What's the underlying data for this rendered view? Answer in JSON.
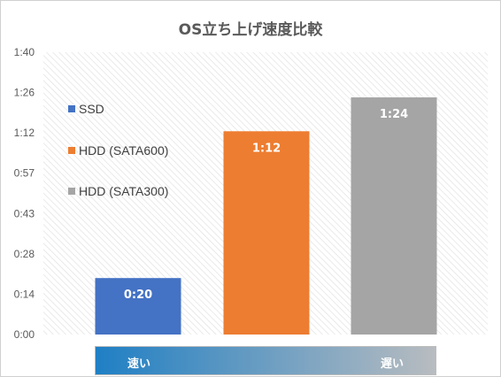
{
  "chart_data": {
    "type": "bar",
    "title": "OS立ち上げ速度比較",
    "categories": [
      "SSD",
      "HDD (SATA600)",
      "HDD (SATA300)"
    ],
    "values_seconds": [
      20,
      72,
      84
    ],
    "value_labels": [
      "0:20",
      "1:12",
      "1:24"
    ],
    "ylim_seconds": [
      0,
      100
    ],
    "y_ticks": [
      "0:00",
      "0:14",
      "0:28",
      "0:43",
      "0:57",
      "1:12",
      "1:26",
      "1:40"
    ],
    "y_tick_seconds": [
      0,
      14.29,
      28.57,
      42.86,
      57.14,
      71.43,
      85.71,
      100
    ],
    "grid": "hatched background",
    "legend_position": "left inside plot",
    "series": [
      {
        "name": "SSD",
        "color": "#4472C4"
      },
      {
        "name": "HDD (SATA600)",
        "color": "#ED7D31"
      },
      {
        "name": "HDD (SATA300)",
        "color": "#A5A5A5"
      }
    ]
  },
  "speed_scale": {
    "fast_label": "速い",
    "slow_label": "遅い",
    "color_start": "#1F7FC4",
    "color_end": "#B8BCC0"
  }
}
